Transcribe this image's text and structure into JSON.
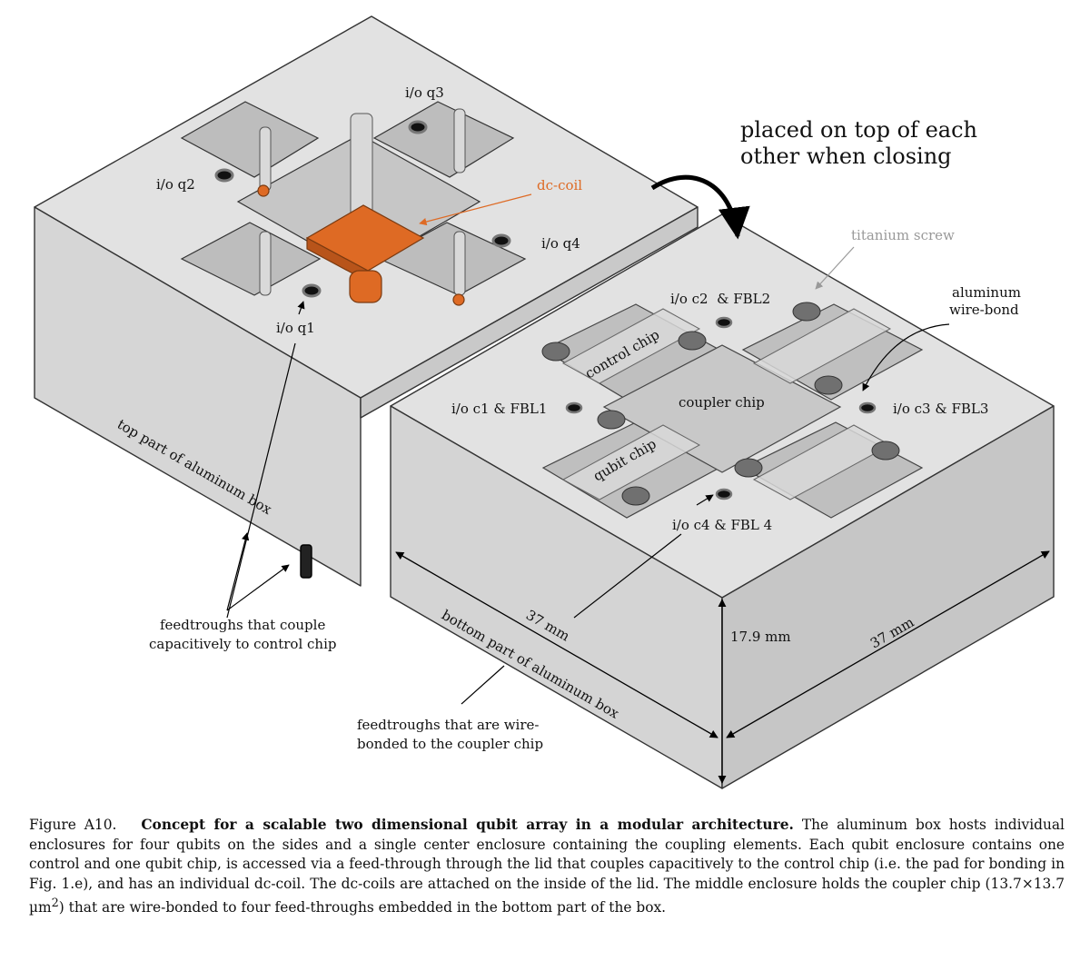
{
  "labels": {
    "io_q1": "i/o q1",
    "io_q2": "i/o q2",
    "io_q3": "i/o q3",
    "io_q4": "i/o q4",
    "dc_coil": "dc-coil",
    "placed_line1": "placed on top of each",
    "placed_line2": "other when closing",
    "titanium_screw": "titanium screw",
    "aluminum_wire_bond_line1": "aluminum",
    "aluminum_wire_bond_line2": "wire-bond",
    "io_c2": "i/o c2  & FBL2",
    "io_c1": "i/o c1 & FBL1",
    "io_c3": "i/o c3 & FBL3",
    "io_c4": "i/o c4 & FBL 4",
    "control_chip": "control chip",
    "coupler_chip": "coupler chip",
    "qubit_chip": "qubit chip",
    "top_part": "top part of aluminum box",
    "bottom_part": "bottom part of aluminum box",
    "feed_control_line1": "feedtroughs that couple",
    "feed_control_line2": "capacitively to control chip",
    "feed_coupler_line1": "feedtroughs that are wire-",
    "feed_coupler_line2": "bonded to the coupler chip",
    "dim_37_front": "37 mm",
    "dim_37_right": "37 mm",
    "dim_height": "17.9 mm"
  },
  "caption": {
    "figure_label": "Figure A10.",
    "title": "Concept for a scalable two dimensional qubit array in a modular architecture.",
    "text_part1": "The aluminum box hosts individual enclosures for four qubits on the sides and a single center enclosure containing the coupling elements. Each qubit enclosure contains one control and one qubit chip, is accessed via a feed-through through the lid that couples capacitively to the control chip (i.e. the pad for bonding in Fig. 1.e), and has an individual dc-coil. The dc-coils are attached on the inside of the lid. The middle enclosure holds the coupler chip (13.7×13.7 µm",
    "superscript": "2",
    "text_part2": ") that are wire-bonded to four feed-throughs embedded in the bottom part of the box."
  },
  "colors": {
    "top_face": "#e2e2e2",
    "left_face": "#d6d6d6",
    "right_face": "#c9c9c9",
    "pocket": "#b8b8b8",
    "coil": "#de6a24",
    "screw_label": "#999999"
  }
}
